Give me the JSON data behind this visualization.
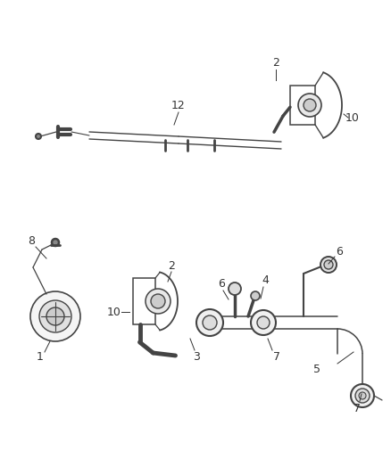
{
  "bg_color": "#ffffff",
  "line_color": "#444444",
  "label_color": "#333333",
  "fig_width": 4.38,
  "fig_height": 5.33,
  "dpi": 100
}
